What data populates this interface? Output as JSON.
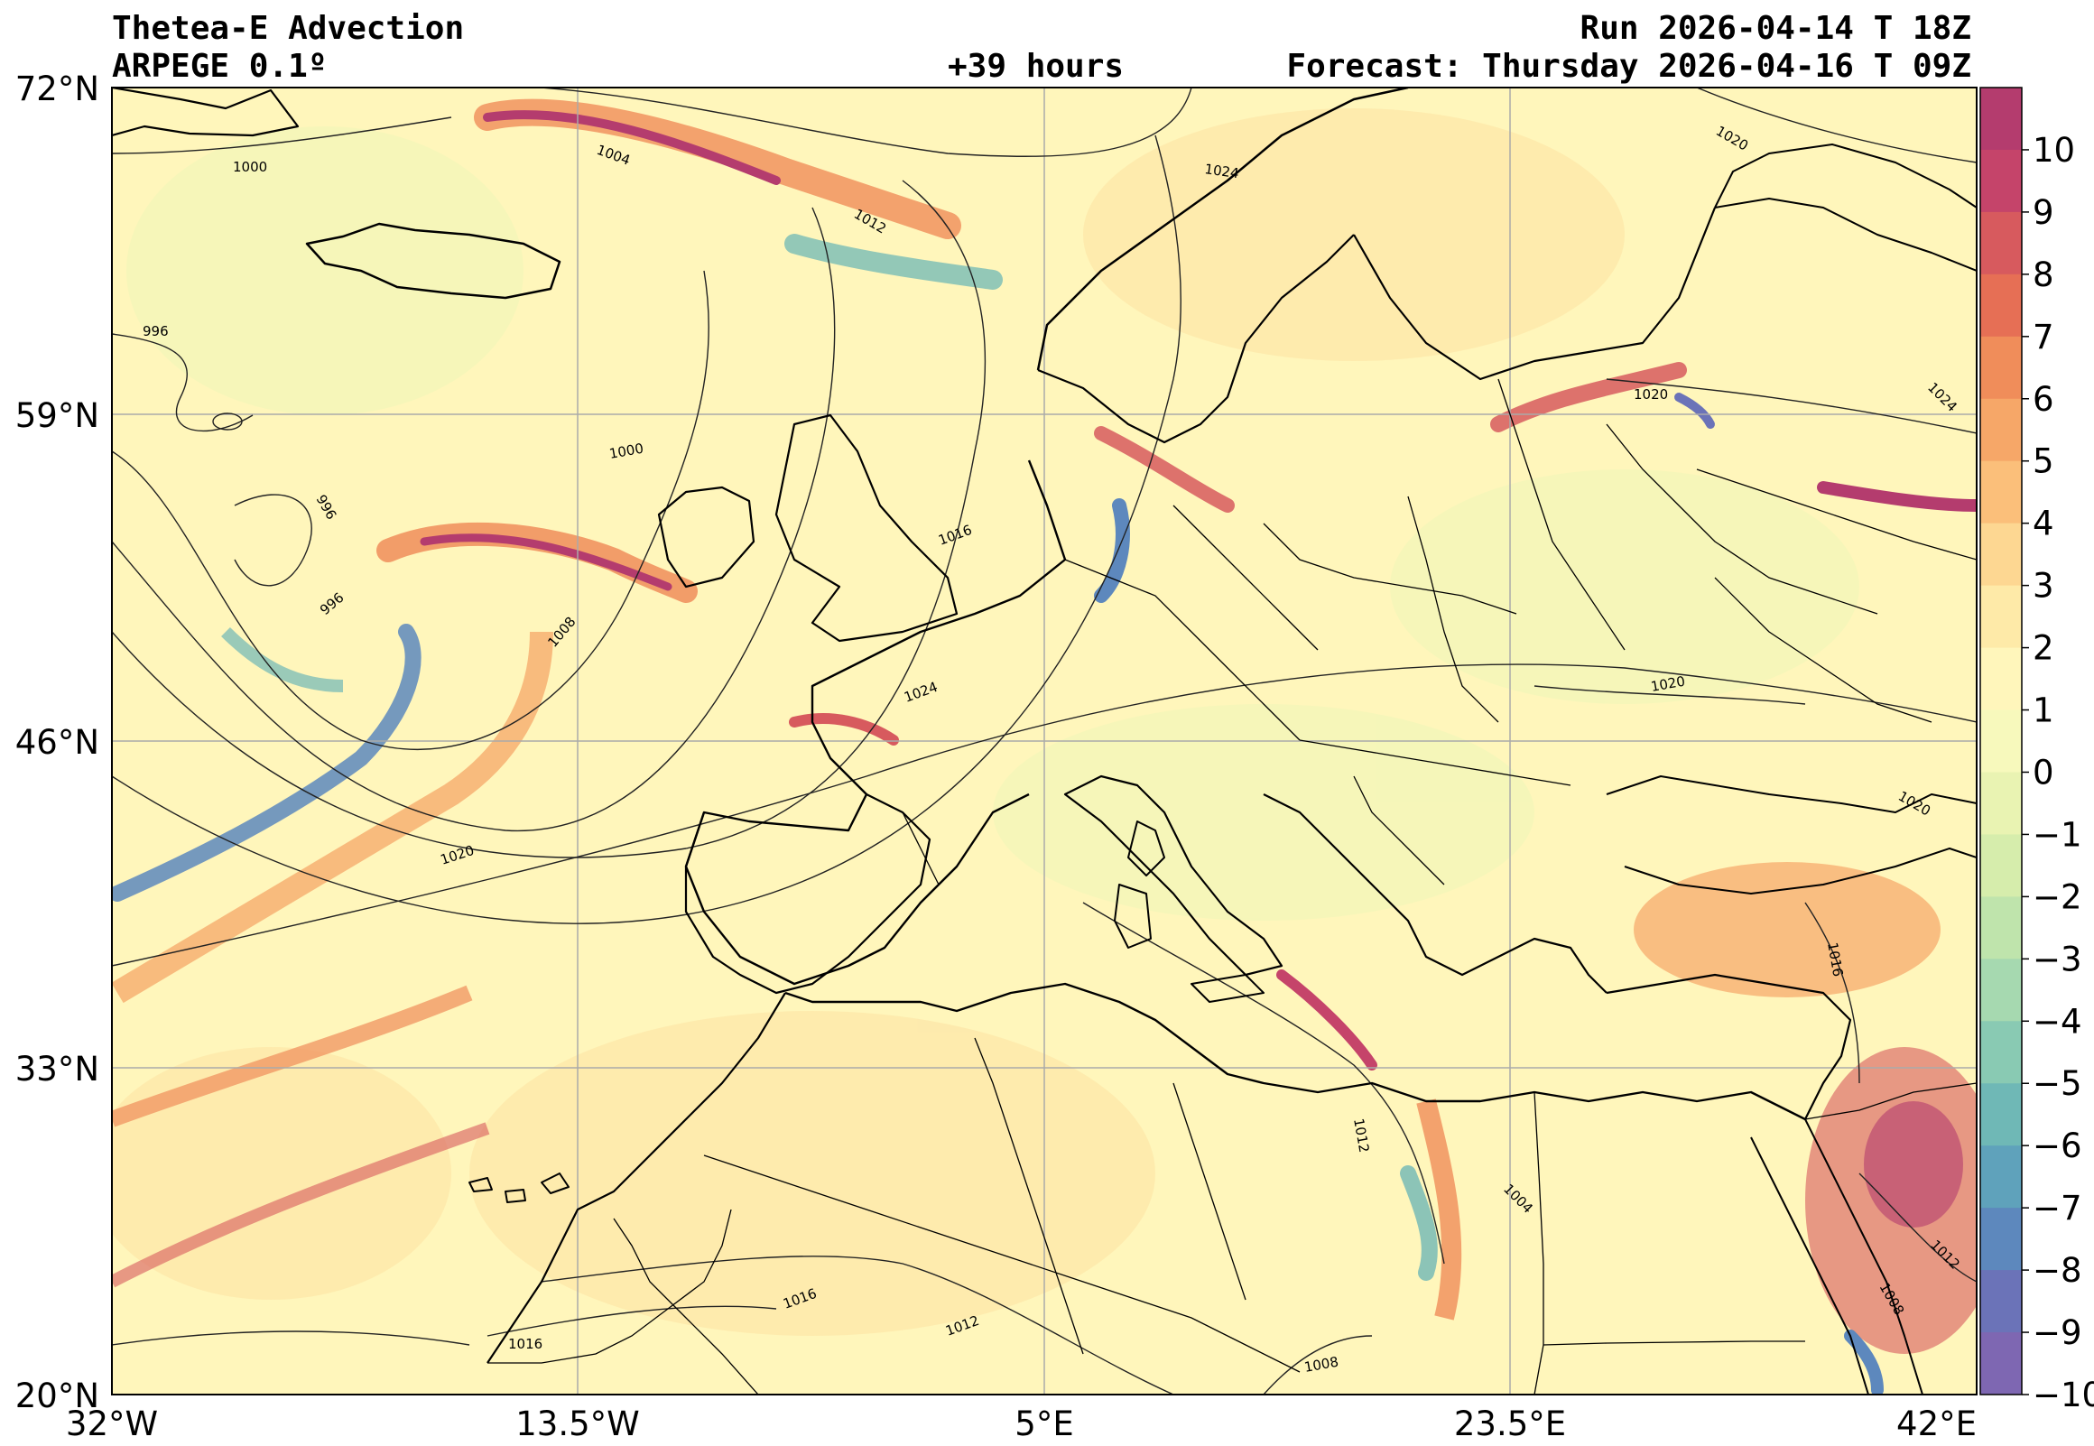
{
  "title": {
    "left_line1": "Thetea-E Advection",
    "left_line2": "ARPEGE 0.1º",
    "center": "+39 hours",
    "right_line1": "Run 2026-04-14 T 18Z",
    "right_line2": "Forecast: Thursday 2026-04-16 T 09Z"
  },
  "axes": {
    "lat_ticks": [
      "72°N",
      "59°N",
      "46°N",
      "33°N",
      "20°N"
    ],
    "lon_ticks": [
      "32°W",
      "13.5°W",
      "5°E",
      "23.5°E",
      "42°E"
    ],
    "lat_range": [
      20,
      72
    ],
    "lon_range": [
      -32,
      42
    ]
  },
  "colorbar": {
    "ticks": [
      "10",
      "9",
      "8",
      "7",
      "6",
      "5",
      "4",
      "3",
      "2",
      "1",
      "0",
      "−1",
      "−2",
      "−3",
      "−4",
      "−5",
      "−6",
      "−7",
      "−8",
      "−9",
      "−10"
    ],
    "colors": [
      "#b43c6e",
      "#c5446a",
      "#d75a5e",
      "#e66f55",
      "#f08d5a",
      "#f6a768",
      "#fbbf7a",
      "#fdd792",
      "#feeaa8",
      "#fff6bb",
      "#f7f9bc",
      "#e9f3b2",
      "#d6edac",
      "#bfe4ac",
      "#a6d9b0",
      "#89cab3",
      "#6fb8b6",
      "#5fa2bb",
      "#5d88bd",
      "#6b73b8",
      "#7e67b2"
    ]
  },
  "isobars": {
    "labels": [
      "1000",
      "1004",
      "1012",
      "1024",
      "1020",
      "996",
      "1000",
      "996",
      "996",
      "1008",
      "1016",
      "1024",
      "1020",
      "1020",
      "1024",
      "1020",
      "1012",
      "1016",
      "1016",
      "1012",
      "1004",
      "1012",
      "1008",
      "1008",
      "1016",
      "1020"
    ]
  },
  "colors": {
    "background_field": "#fff9c4",
    "warm_advection": "#d23f6a",
    "cold_advection": "#5d88bd",
    "coast": "#000000",
    "gridline": "#aaaaaa"
  }
}
